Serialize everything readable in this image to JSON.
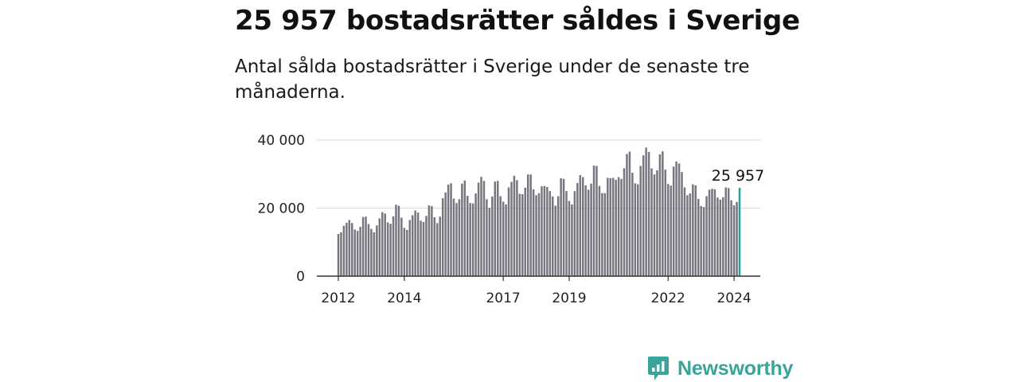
{
  "title": "25 957 bostadsrätter såldes i Sverige",
  "subtitle": "Antal sålda bostadsrätter i Sverige under de senaste tre månaderna.",
  "brand": {
    "name": "Newsworthy",
    "color": "#3aa39a"
  },
  "chart_data": {
    "type": "bar",
    "title": "25 957 bostadsrätter såldes i Sverige",
    "subtitle": "Antal sålda bostadsrätter i Sverige under de senaste tre månaderna.",
    "xlabel": "",
    "ylabel": "",
    "ylim": [
      0,
      40000
    ],
    "grid": true,
    "bar_color": "#77767f",
    "highlight_color": "#2a9d94",
    "y_ticks": [
      {
        "value": 0,
        "label": "0"
      },
      {
        "value": 20000,
        "label": "20 000"
      },
      {
        "value": 40000,
        "label": "40 000"
      }
    ],
    "x_ticks": [
      {
        "year": 2012,
        "label": "2012"
      },
      {
        "year": 2014,
        "label": "2014"
      },
      {
        "year": 2017,
        "label": "2017"
      },
      {
        "year": 2019,
        "label": "2019"
      },
      {
        "year": 2022,
        "label": "2022"
      },
      {
        "year": 2024,
        "label": "2024"
      }
    ],
    "start_year": 2012,
    "highlight_label": "25 957",
    "values": [
      12400,
      12900,
      14800,
      15700,
      16500,
      15600,
      13700,
      13300,
      14500,
      17400,
      17500,
      15300,
      13900,
      12900,
      14900,
      17000,
      18800,
      18400,
      15800,
      15400,
      17600,
      21000,
      20700,
      17200,
      14200,
      13600,
      16500,
      17900,
      19300,
      18700,
      16300,
      15900,
      17700,
      20800,
      20600,
      17300,
      15600,
      17500,
      22900,
      24600,
      26900,
      27300,
      22800,
      21500,
      22600,
      27200,
      28100,
      23600,
      21500,
      21400,
      24300,
      27500,
      29200,
      28000,
      22600,
      20100,
      23400,
      27800,
      28000,
      23500,
      21900,
      21100,
      26100,
      27700,
      29500,
      28200,
      24200,
      24100,
      26000,
      29900,
      29900,
      25500,
      23800,
      24400,
      26400,
      26500,
      26200,
      25000,
      23400,
      20700,
      23500,
      28800,
      28600,
      25000,
      22100,
      21100,
      25000,
      27400,
      29700,
      29100,
      26700,
      25400,
      27200,
      32500,
      32400,
      26500,
      24400,
      24400,
      28900,
      28800,
      28900,
      28300,
      29100,
      28600,
      31700,
      35900,
      36600,
      30400,
      27300,
      27000,
      32400,
      35500,
      37800,
      36500,
      31700,
      29900,
      31100,
      35800,
      36700,
      31300,
      27100,
      26600,
      32200,
      33700,
      33100,
      30600,
      26100,
      23800,
      24300,
      27000,
      26700,
      22700,
      20600,
      20300,
      23500,
      25400,
      25700,
      25500,
      23100,
      22500,
      23200,
      26100,
      25900,
      22300,
      20800,
      21800,
      25957
    ]
  }
}
